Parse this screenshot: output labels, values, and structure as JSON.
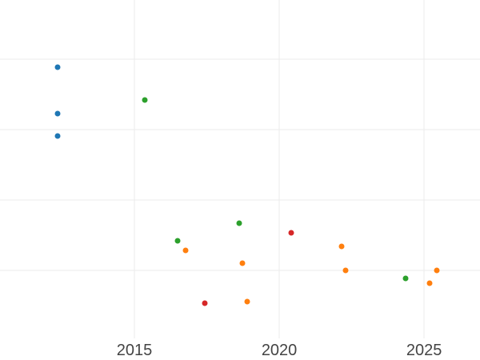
{
  "chart_data": {
    "type": "scatter",
    "title": "",
    "xlabel": "",
    "ylabel": "",
    "x_ticks": [
      {
        "value": 2015,
        "label": "2015"
      },
      {
        "value": 2020,
        "label": "2020"
      },
      {
        "value": 2025,
        "label": "2025"
      }
    ],
    "y_gridline_values": [
      1,
      2,
      3,
      4
    ],
    "y_tick_labels_visible": false,
    "series": [
      {
        "name": "blue",
        "color": "#1f77b4",
        "points": [
          {
            "x": 2012.35,
            "y": 3.88
          },
          {
            "x": 2012.35,
            "y": 3.23
          },
          {
            "x": 2012.35,
            "y": 2.91
          }
        ]
      },
      {
        "name": "green",
        "color": "#2ca02c",
        "points": [
          {
            "x": 2015.36,
            "y": 3.42
          },
          {
            "x": 2016.49,
            "y": 1.42
          },
          {
            "x": 2018.62,
            "y": 1.67
          },
          {
            "x": 2024.36,
            "y": 0.89
          }
        ]
      },
      {
        "name": "orange",
        "color": "#ff7f0e",
        "points": [
          {
            "x": 2016.77,
            "y": 1.28
          },
          {
            "x": 2018.73,
            "y": 1.1
          },
          {
            "x": 2018.9,
            "y": 0.56
          },
          {
            "x": 2022.15,
            "y": 1.34
          },
          {
            "x": 2022.29,
            "y": 1.0
          },
          {
            "x": 2025.19,
            "y": 0.82
          },
          {
            "x": 2025.44,
            "y": 1.0
          }
        ]
      },
      {
        "name": "red",
        "color": "#d62728",
        "points": [
          {
            "x": 2017.43,
            "y": 0.53
          },
          {
            "x": 2020.41,
            "y": 1.53
          }
        ]
      }
    ],
    "layout": {
      "x_range": [
        2010.36,
        2026.93
      ],
      "y_range": [
        0,
        4.84
      ],
      "grid": true,
      "grid_color": "#ebebeb",
      "background_color": "#ffffff",
      "tick_label_color": "#444444",
      "legend": "none"
    }
  }
}
